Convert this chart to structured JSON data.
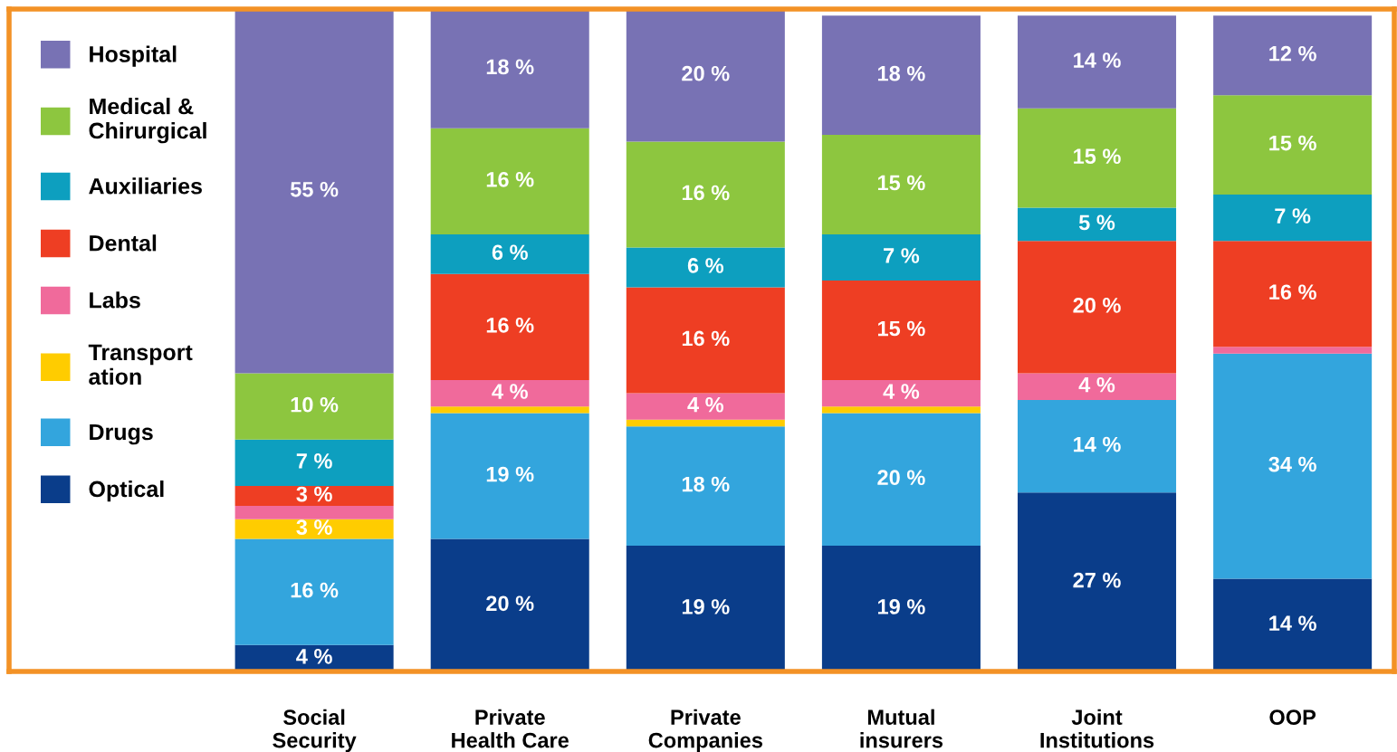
{
  "chart_data": {
    "type": "bar",
    "stacked": true,
    "legend": "left",
    "grid": false,
    "tick_labels": "x",
    "ylim": [
      0,
      100
    ],
    "categories": [
      "Social\nSecurity",
      "Private\nHealth Care",
      "Private\nCompanies",
      "Mutual\ninsurers",
      "Joint\nInstitutions",
      "OOP"
    ],
    "series": [
      {
        "name": "Optical",
        "color": "#0a3d8a",
        "values": [
          4,
          20,
          19,
          19,
          27,
          14
        ],
        "value_labels": [
          "4 %",
          "20 %",
          "19 %",
          "19 %",
          "27 %",
          "14 %"
        ]
      },
      {
        "name": "Drugs",
        "color": "#33a5dd",
        "values": [
          16,
          19,
          18,
          20,
          14,
          34
        ],
        "value_labels": [
          "16 %",
          "19 %",
          "18 %",
          "20 %",
          "14 %",
          "34 %"
        ]
      },
      {
        "name": "Transport\nation",
        "color": "#ffcc00",
        "values": [
          3,
          1,
          1,
          1,
          null,
          null
        ],
        "value_labels": [
          "3 %",
          null,
          null,
          null,
          null,
          null
        ]
      },
      {
        "name": "Labs",
        "color": "#f06a9b",
        "values": [
          2,
          4,
          4,
          4,
          4,
          1
        ],
        "value_labels": [
          null,
          "4 %",
          "4 %",
          "4 %",
          "4 %",
          null
        ]
      },
      {
        "name": "Dental",
        "color": "#ee3e23",
        "values": [
          3,
          16,
          16,
          15,
          20,
          16
        ],
        "value_labels": [
          "3 %",
          "16 %",
          "16 %",
          "15 %",
          "20 %",
          "16 %"
        ]
      },
      {
        "name": "Auxiliaries",
        "color": "#0d9fbf",
        "values": [
          7,
          6,
          6,
          7,
          5,
          7
        ],
        "value_labels": [
          "7 %",
          "6 %",
          "6 %",
          "7 %",
          "5 %",
          "7 %"
        ]
      },
      {
        "name": "Medical &\nChirurgical",
        "color": "#8dc63f",
        "values": [
          10,
          16,
          16,
          15,
          15,
          15
        ],
        "value_labels": [
          "10 %",
          "16 %",
          "16 %",
          "15 %",
          "15 %",
          "15 %"
        ]
      },
      {
        "name": "Hospital",
        "color": "#7872b4",
        "values": [
          55,
          18,
          20,
          18,
          14,
          12
        ],
        "value_labels": [
          "55 %",
          "18 %",
          "20 %",
          "18 %",
          "14 %",
          "12 %"
        ]
      }
    ]
  }
}
